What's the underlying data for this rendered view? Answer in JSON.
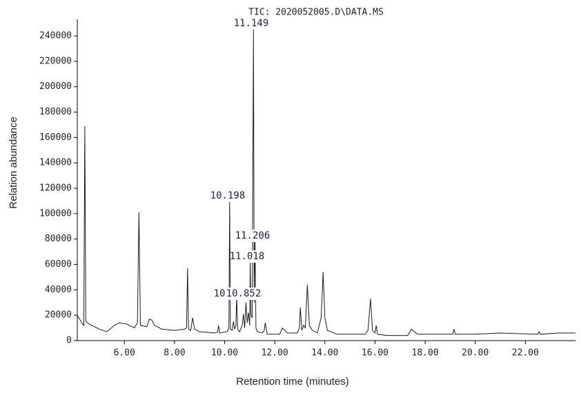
{
  "chart_data": {
    "type": "line",
    "title": "TIC: 2020052005.D\\DATA.MS",
    "y_label": "Relation abundance",
    "x_label": "Retention time (minutes)",
    "color": "#1a1a1a",
    "xlim": [
      4.12,
      24.0
    ],
    "ylim": [
      0,
      252000
    ],
    "xticks": [
      {
        "value": 6,
        "label": "6.00"
      },
      {
        "value": 8,
        "label": "8.00"
      },
      {
        "value": 10,
        "label": "10.00"
      },
      {
        "value": 12,
        "label": "12.00"
      },
      {
        "value": 14,
        "label": "14.00"
      },
      {
        "value": 16,
        "label": "16.00"
      },
      {
        "value": 18,
        "label": "18.00"
      },
      {
        "value": 20,
        "label": "20.00"
      },
      {
        "value": 22,
        "label": "22.00"
      }
    ],
    "yticks": [
      0,
      20000,
      40000,
      60000,
      80000,
      100000,
      120000,
      140000,
      160000,
      180000,
      200000,
      220000,
      240000
    ],
    "annotations": [
      "11.149",
      "10.198",
      "11.206",
      "11.018",
      "10",
      "10.852"
    ],
    "x": [
      4.12,
      4.3,
      4.38,
      4.42,
      4.46,
      4.6,
      5.0,
      5.3,
      5.6,
      5.8,
      6.1,
      6.4,
      6.52,
      6.58,
      6.64,
      6.9,
      7.0,
      7.1,
      7.2,
      7.5,
      8.0,
      8.4,
      8.48,
      8.52,
      8.56,
      8.65,
      8.72,
      8.8,
      9.0,
      9.6,
      9.72,
      9.76,
      9.8,
      10.1,
      10.17,
      10.2,
      10.23,
      10.3,
      10.35,
      10.4,
      10.45,
      10.48,
      10.52,
      10.6,
      10.7,
      10.75,
      10.8,
      10.85,
      10.9,
      10.95,
      11.0,
      11.02,
      11.05,
      11.1,
      11.15,
      11.18,
      11.21,
      11.25,
      11.3,
      11.5,
      11.58,
      11.62,
      11.7,
      12.2,
      12.3,
      12.5,
      12.9,
      12.98,
      13.02,
      13.08,
      13.15,
      13.22,
      13.3,
      13.38,
      13.5,
      13.7,
      13.85,
      13.93,
      14.0,
      14.1,
      14.5,
      15.0,
      15.6,
      15.72,
      15.82,
      15.9,
      16.0,
      16.05,
      16.1,
      16.5,
      17.3,
      17.45,
      17.7,
      18.5,
      19.1,
      19.15,
      19.2,
      20.0,
      21.0,
      22.5,
      22.55,
      22.6,
      23.3,
      24.0
    ],
    "values": [
      20000,
      14000,
      12000,
      169000,
      15000,
      13000,
      9000,
      7000,
      12000,
      14000,
      13000,
      10000,
      14000,
      101000,
      12000,
      11000,
      17000,
      16000,
      12000,
      9000,
      8000,
      9000,
      10000,
      57000,
      9000,
      8000,
      18000,
      9000,
      7000,
      6000,
      7000,
      12000,
      6000,
      7000,
      10000,
      110000,
      9000,
      8000,
      15000,
      9000,
      12000,
      35000,
      9000,
      7000,
      12000,
      21000,
      10000,
      30000,
      14000,
      22000,
      12000,
      62000,
      20000,
      18000,
      245000,
      30000,
      82000,
      10000,
      7000,
      6000,
      8000,
      14000,
      5000,
      5000,
      10000,
      6000,
      6000,
      10000,
      26000,
      8000,
      12000,
      10000,
      44000,
      12000,
      8000,
      6000,
      18000,
      54000,
      18000,
      8000,
      5000,
      5000,
      5000,
      8000,
      33000,
      8000,
      6000,
      12000,
      5000,
      4000,
      4000,
      9000,
      5000,
      5000,
      5000,
      9000,
      5000,
      5000,
      6000,
      5000,
      7000,
      5000,
      6000,
      6000
    ]
  }
}
